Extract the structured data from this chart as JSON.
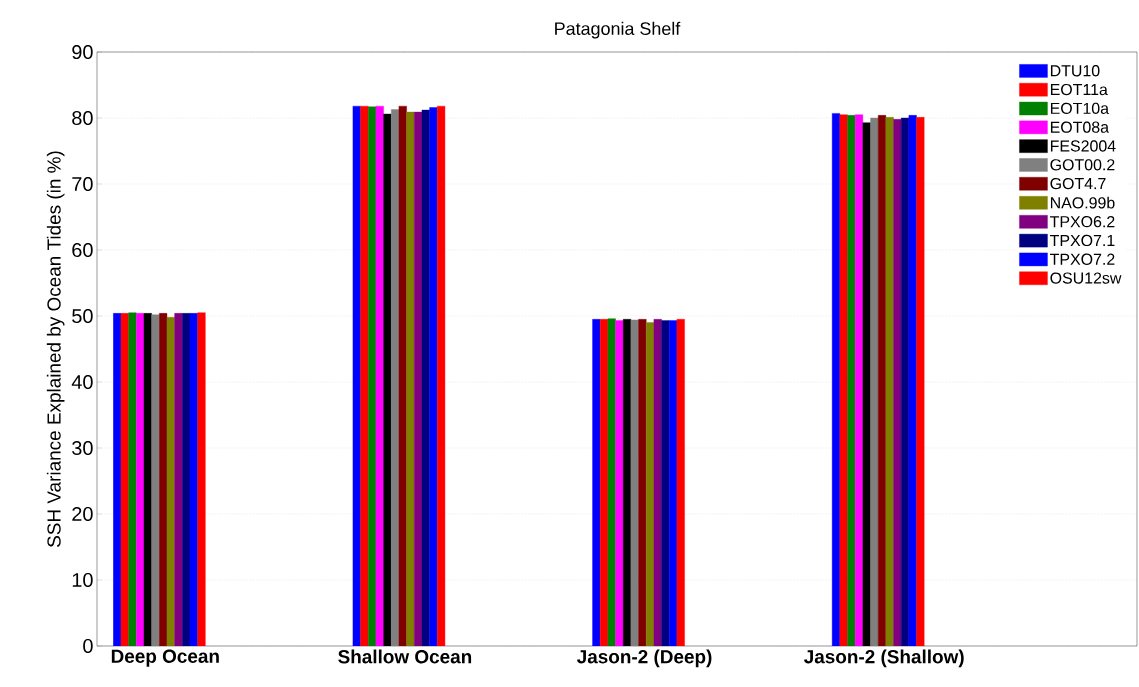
{
  "chart_data": {
    "type": "bar",
    "title": "Patagonia Shelf",
    "ylabel": "SSH Variance Explained by Ocean Tides (in %)",
    "categories": [
      "Deep Ocean",
      "Shallow Ocean",
      "Jason-2 (Deep)",
      "Jason-2 (Shallow)"
    ],
    "series": [
      {
        "name": "DTU10",
        "color": "#0000ff",
        "values": [
          50.4,
          81.8,
          49.5,
          80.7
        ]
      },
      {
        "name": "EOT11a",
        "color": "#ff0000",
        "values": [
          50.4,
          81.8,
          49.5,
          80.5
        ]
      },
      {
        "name": "EOT10a",
        "color": "#008000",
        "values": [
          50.5,
          81.7,
          49.6,
          80.4
        ]
      },
      {
        "name": "EOT08a",
        "color": "#ff00ff",
        "values": [
          50.4,
          81.8,
          49.3,
          80.5
        ]
      },
      {
        "name": "FES2004",
        "color": "#000000",
        "values": [
          50.4,
          80.6,
          49.5,
          79.3
        ]
      },
      {
        "name": "GOT00.2",
        "color": "#808080",
        "values": [
          50.2,
          81.3,
          49.4,
          80.0
        ]
      },
      {
        "name": "GOT4.7",
        "color": "#800000",
        "values": [
          50.4,
          81.8,
          49.5,
          80.4
        ]
      },
      {
        "name": "NAO.99b",
        "color": "#808000",
        "values": [
          49.8,
          80.9,
          49.0,
          80.1
        ]
      },
      {
        "name": "TPXO6.2",
        "color": "#800080",
        "values": [
          50.4,
          80.9,
          49.5,
          79.8
        ]
      },
      {
        "name": "TPXO7.1",
        "color": "#000080",
        "values": [
          50.4,
          81.2,
          49.3,
          80.0
        ]
      },
      {
        "name": "TPXO7.2",
        "color": "#0000ff",
        "values": [
          50.4,
          81.6,
          49.3,
          80.4
        ]
      },
      {
        "name": "OSU12sw",
        "color": "#ff0000",
        "values": [
          50.5,
          81.8,
          49.5,
          80.1
        ]
      }
    ],
    "ylim": [
      0,
      90
    ],
    "yticks": [
      0,
      10,
      20,
      30,
      40,
      50,
      60,
      70,
      80,
      90
    ],
    "grid": "y",
    "legend": "top right"
  }
}
